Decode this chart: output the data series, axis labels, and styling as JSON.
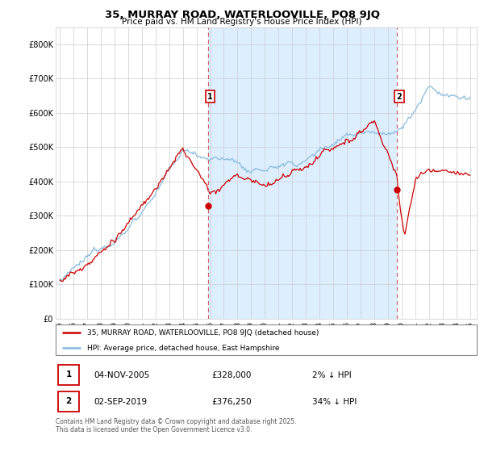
{
  "title": "35, MURRAY ROAD, WATERLOOVILLE, PO8 9JQ",
  "subtitle": "Price paid vs. HM Land Registry's House Price Index (HPI)",
  "legend_line1": "35, MURRAY ROAD, WATERLOOVILLE, PO8 9JQ (detached house)",
  "legend_line2": "HPI: Average price, detached house, East Hampshire",
  "annotation1_date": "04-NOV-2005",
  "annotation1_price": "£328,000",
  "annotation1_hpi": "2% ↓ HPI",
  "annotation2_date": "02-SEP-2019",
  "annotation2_price": "£376,250",
  "annotation2_hpi": "34% ↓ HPI",
  "footer": "Contains HM Land Registry data © Crown copyright and database right 2025.\nThis data is licensed under the Open Government Licence v3.0.",
  "house_color": "#cc0000",
  "hpi_color": "#88bbdd",
  "shade_color": "#ddeeff",
  "ylim": [
    0,
    850000
  ],
  "yticks": [
    0,
    100000,
    200000,
    300000,
    400000,
    500000,
    600000,
    700000,
    800000
  ],
  "ytick_labels": [
    "£0",
    "£100K",
    "£200K",
    "£300K",
    "£400K",
    "£500K",
    "£600K",
    "£700K",
    "£800K"
  ],
  "start_year": 1995,
  "end_year": 2025,
  "marker1_year": 2005.85,
  "marker1_val": 328000,
  "marker2_year": 2019.67,
  "marker2_val": 376250
}
